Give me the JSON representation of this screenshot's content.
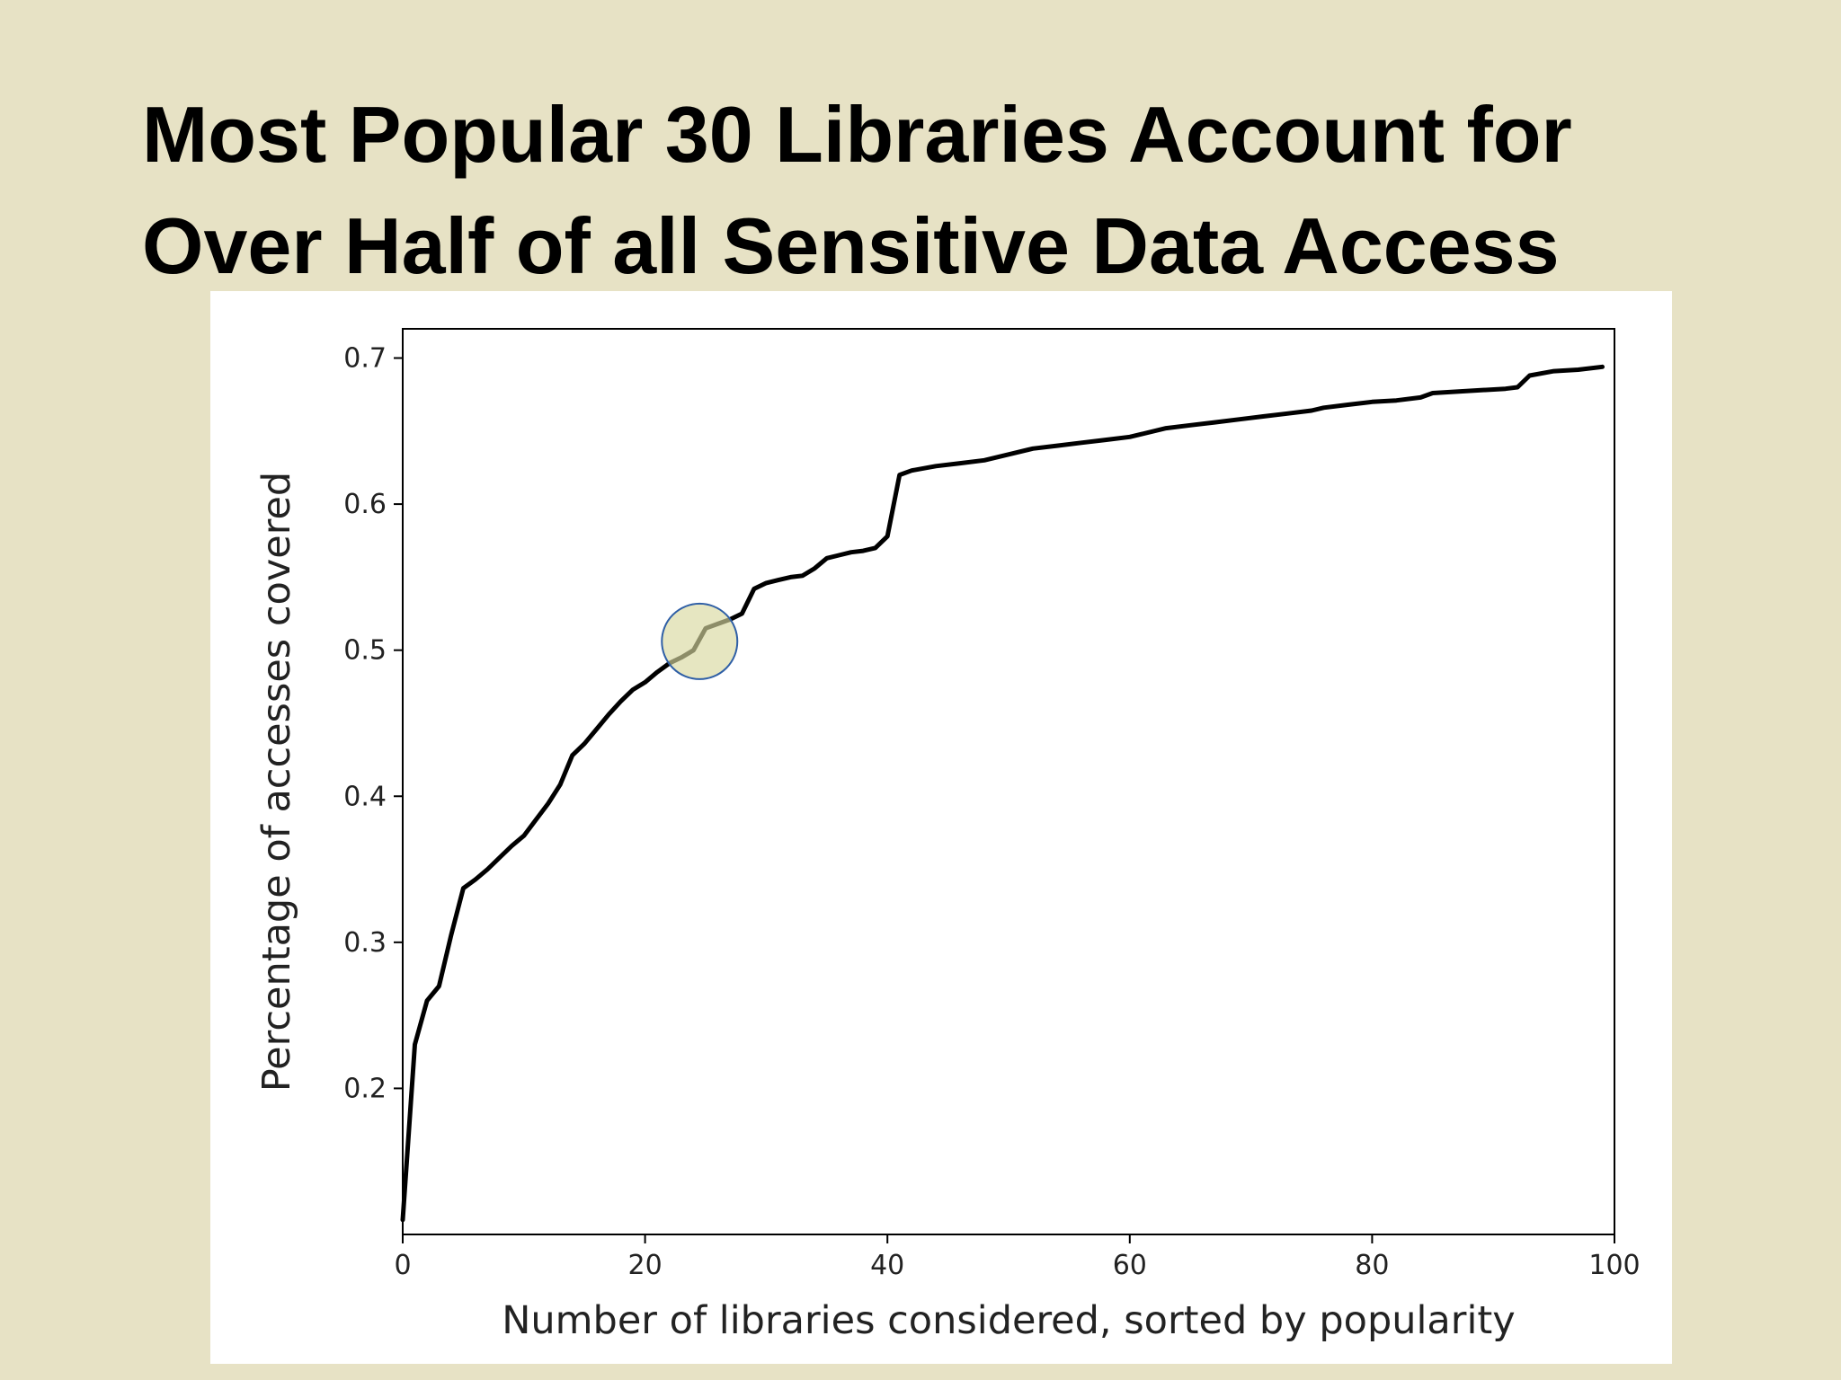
{
  "slide": {
    "title_line1": "Most Popular 30 Libraries Account for",
    "title_line2": "Over Half of all Sensitive Data Access"
  },
  "chart_data": {
    "type": "line",
    "title": "",
    "xlabel": "Number of libraries considered, sorted by popularity",
    "ylabel": "Percentage of accesses covered",
    "xlim": [
      0,
      100
    ],
    "ylim": [
      0.1,
      0.72
    ],
    "xticks": [
      0,
      20,
      40,
      60,
      80,
      100
    ],
    "yticks": [
      0.2,
      0.3,
      0.4,
      0.5,
      0.6,
      0.7
    ],
    "grid": false,
    "series": [
      {
        "line_color": "#000000",
        "x": [
          0,
          1,
          2,
          3,
          4,
          5,
          6,
          7,
          8,
          9,
          10,
          11,
          12,
          13,
          14,
          15,
          16,
          17,
          18,
          19,
          20,
          21,
          22,
          23,
          24,
          25,
          26,
          27,
          28,
          29,
          30,
          31,
          32,
          33,
          34,
          35,
          36,
          37,
          38,
          39,
          40,
          41,
          42,
          44,
          46,
          48,
          50,
          52,
          54,
          56,
          58,
          60,
          61,
          63,
          65,
          67,
          69,
          71,
          73,
          75,
          76,
          78,
          80,
          82,
          84,
          85,
          87,
          89,
          91,
          92,
          93,
          95,
          97,
          99
        ],
        "y": [
          0.11,
          0.23,
          0.26,
          0.27,
          0.305,
          0.337,
          0.343,
          0.35,
          0.358,
          0.366,
          0.373,
          0.384,
          0.395,
          0.408,
          0.428,
          0.436,
          0.446,
          0.456,
          0.465,
          0.473,
          0.478,
          0.485,
          0.491,
          0.495,
          0.5,
          0.515,
          0.518,
          0.521,
          0.525,
          0.542,
          0.546,
          0.548,
          0.55,
          0.551,
          0.556,
          0.563,
          0.565,
          0.567,
          0.568,
          0.57,
          0.578,
          0.62,
          0.623,
          0.626,
          0.628,
          0.63,
          0.634,
          0.638,
          0.64,
          0.642,
          0.644,
          0.646,
          0.648,
          0.652,
          0.654,
          0.656,
          0.658,
          0.66,
          0.662,
          0.664,
          0.666,
          0.668,
          0.67,
          0.671,
          0.673,
          0.676,
          0.677,
          0.678,
          0.679,
          0.68,
          0.688,
          0.691,
          0.692,
          0.694
        ]
      }
    ],
    "highlight_marker": {
      "x": 24.5,
      "y": 0.506,
      "fill": "#d8d9a0",
      "stroke": "#2f5fa6"
    }
  }
}
